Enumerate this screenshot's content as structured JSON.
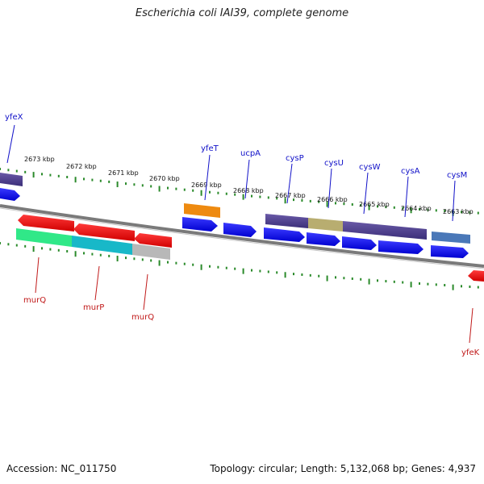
{
  "title": "Escherichia coli IAI39, complete genome",
  "footer": {
    "accession": "Accession: NC_011750",
    "summary": "Topology: circular; Length: 5,132,068 bp; Genes: 4,937"
  },
  "colors": {
    "backbone": "#7a7a7a",
    "tick": "#2a8a2a",
    "forward_label": "#1010c8",
    "reverse_label": "#c01818"
  },
  "scale_labels": [
    "2673 kbp",
    "2672 kbp",
    "2671 kbp",
    "2670 kbp",
    "2669 kbp",
    "2668 kbp",
    "2667 kbp",
    "2666 kbp",
    "2665 kbp",
    "2664 kbp",
    "2663 kbp"
  ],
  "gene_labels": {
    "forward": [
      "yfeX",
      "yfeT",
      "ucpA",
      "cysP",
      "cysU",
      "cysW",
      "cysA",
      "cysM"
    ],
    "reverse": [
      "murQ",
      "murP",
      "murQ",
      "yfeK"
    ]
  }
}
